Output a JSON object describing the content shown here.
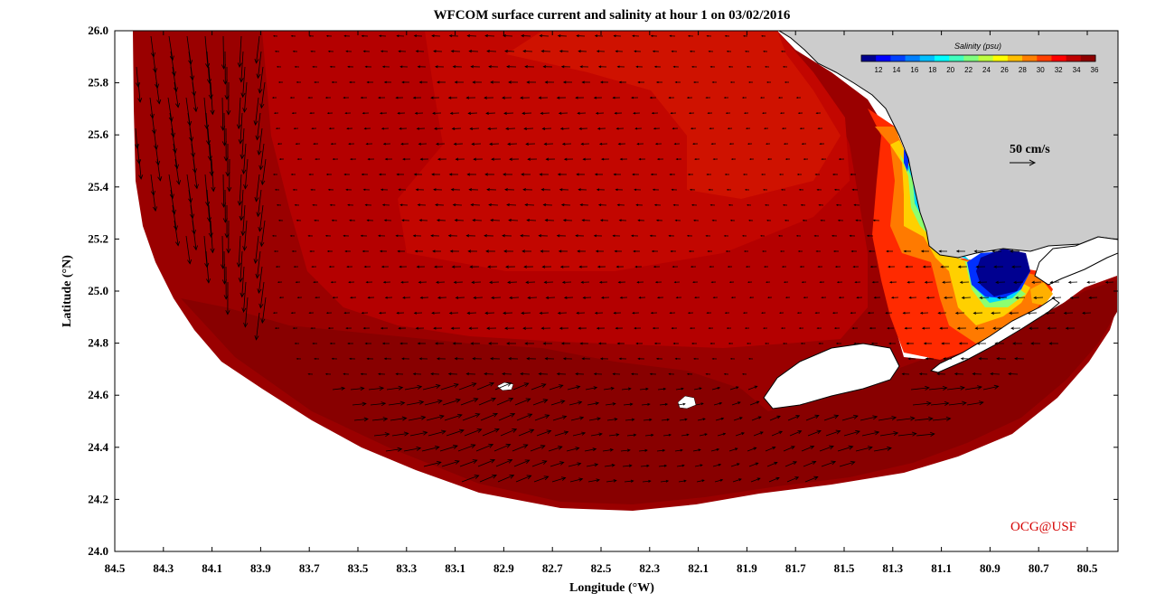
{
  "title": "WFCOM surface current and salinity at hour 1 on 03/02/2016",
  "x_axis": {
    "label": "Longitude (°W)",
    "ticks": [
      "84.5",
      "84.3",
      "84.1",
      "83.9",
      "83.7",
      "83.5",
      "83.3",
      "83.1",
      "82.9",
      "82.7",
      "82.5",
      "82.3",
      "82.1",
      "81.9",
      "81.7",
      "81.5",
      "81.3",
      "81.1",
      "80.9",
      "80.7",
      "80.5"
    ]
  },
  "y_axis": {
    "label": "Latitude (°N)",
    "ticks": [
      "26.0",
      "25.8",
      "25.6",
      "25.4",
      "25.2",
      "25.0",
      "24.8",
      "24.6",
      "24.4",
      "24.2",
      "24.0"
    ]
  },
  "colorbar": {
    "title": "Salinity (psu)",
    "ticks": [
      "12",
      "14",
      "16",
      "18",
      "20",
      "22",
      "24",
      "26",
      "28",
      "30",
      "32",
      "34",
      "36"
    ],
    "colors": [
      "#00008f",
      "#0000ff",
      "#0040ff",
      "#0080ff",
      "#00bfff",
      "#00ffff",
      "#40ffbf",
      "#80ff80",
      "#bfff40",
      "#ffff00",
      "#ffbf00",
      "#ff8000",
      "#ff4000",
      "#ff0000",
      "#bf0000",
      "#8f0000"
    ]
  },
  "scale_arrow": {
    "label": "50 cm/s"
  },
  "credit": "OCG@USF",
  "colors": {
    "ocean_main": "#a50000",
    "ocean_dark": "#8c0000",
    "ocean_light": "#c40a00",
    "land": "#cccccc"
  }
}
